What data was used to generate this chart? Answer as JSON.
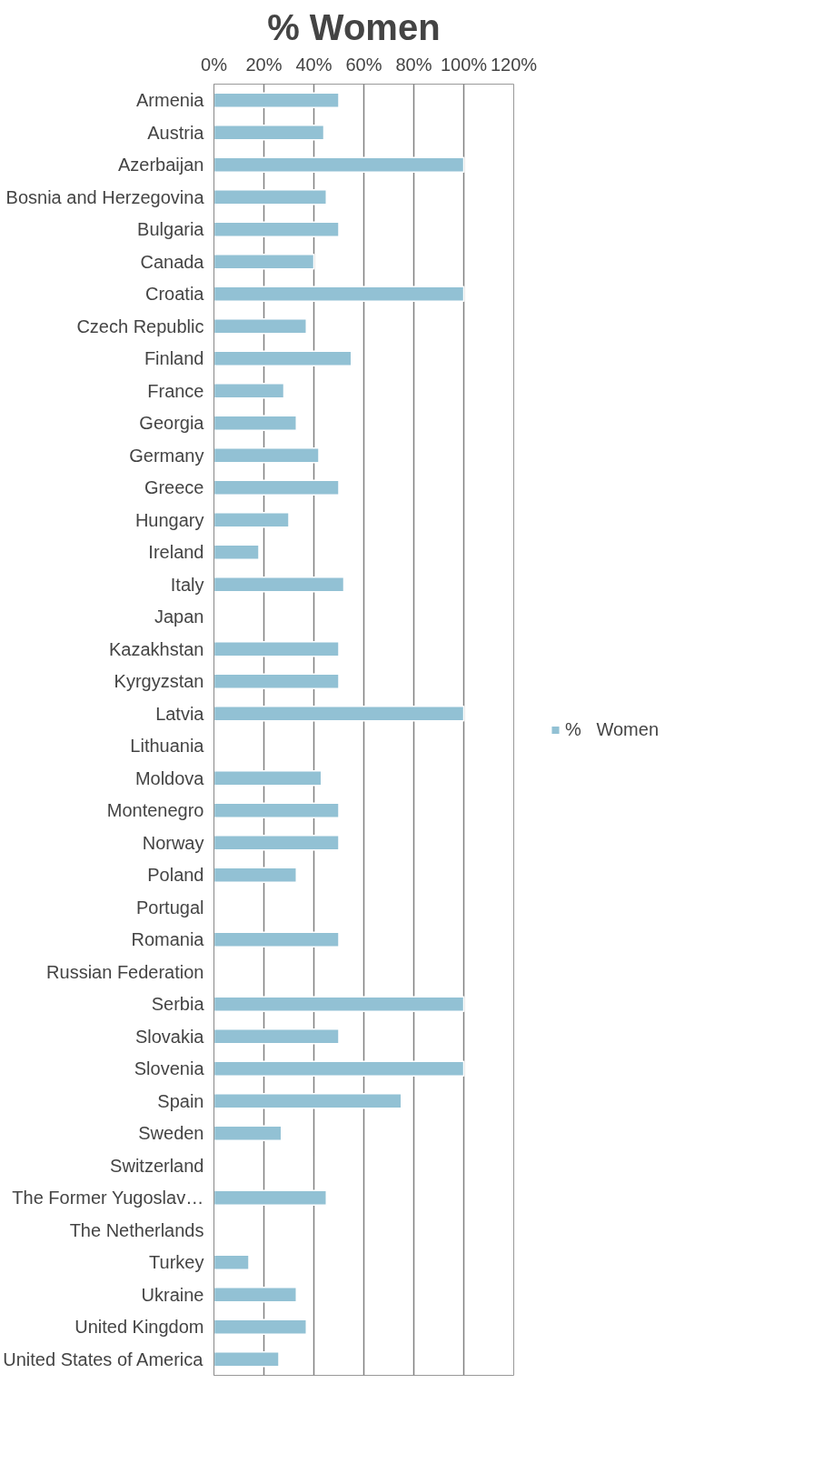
{
  "chart_data": {
    "type": "bar",
    "orientation": "horizontal",
    "title": "%   Women",
    "categories": [
      "Armenia",
      "Austria",
      "Azerbaijan",
      "Bosnia and Herzegovina",
      "Bulgaria",
      "Canada",
      "Croatia",
      "Czech Republic",
      "Finland",
      "France",
      "Georgia",
      "Germany",
      "Greece",
      "Hungary",
      "Ireland",
      "Italy",
      "Japan",
      "Kazakhstan",
      "Kyrgyzstan",
      "Latvia",
      "Lithuania",
      "Moldova",
      "Montenegro",
      "Norway",
      "Poland",
      "Portugal",
      "Romania",
      "Russian Federation",
      "Serbia",
      "Slovakia",
      "Slovenia",
      "Spain",
      "Sweden",
      "Switzerland",
      "The Former Yugoslav…",
      "The Netherlands",
      "Turkey",
      "Ukraine",
      "United Kingdom",
      "United States of America"
    ],
    "series": [
      {
        "name": "%   Women",
        "color": "#92c1d4",
        "values": [
          50,
          44,
          100,
          45,
          50,
          40,
          100,
          37,
          55,
          28,
          33,
          42,
          50,
          30,
          18,
          52,
          null,
          50,
          50,
          100,
          null,
          43,
          50,
          50,
          33,
          null,
          50,
          null,
          100,
          50,
          100,
          75,
          27,
          null,
          45,
          null,
          14,
          33,
          37,
          26
        ]
      }
    ],
    "xlim": [
      0,
      120
    ],
    "xticks": [
      {
        "value": 0,
        "label": "0%"
      },
      {
        "value": 20,
        "label": "20%"
      },
      {
        "value": 40,
        "label": "40%"
      },
      {
        "value": 60,
        "label": "60%"
      },
      {
        "value": 80,
        "label": "80%"
      },
      {
        "value": 100,
        "label": "100%"
      },
      {
        "value": 120,
        "label": "120%"
      }
    ],
    "grid": "x",
    "legend": "right"
  }
}
